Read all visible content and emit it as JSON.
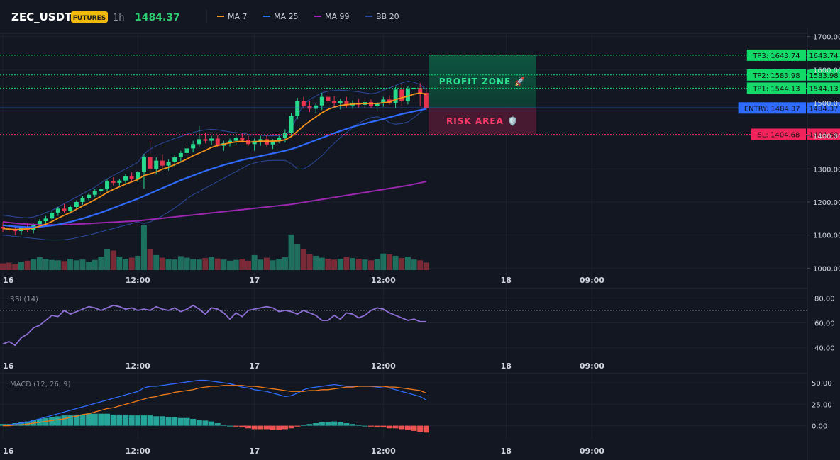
{
  "header": {
    "symbol": "ZEC_USDT",
    "badge": "FUTURES",
    "timeframe": "1h",
    "price": "1484.37",
    "legend": [
      {
        "name": "MA 7",
        "color": "#f7931a"
      },
      {
        "name": "MA 25",
        "color": "#2f6bff"
      },
      {
        "name": "MA 99",
        "color": "#9c27b0"
      },
      {
        "name": "BB 20",
        "color": "#2b4a9e"
      }
    ]
  },
  "colors": {
    "up": "#26d98b",
    "down": "#e8334f",
    "vol_up": "#1f6f5f",
    "vol_down": "#7a2a36",
    "entry": "#2f6bff",
    "tp": "#13d968",
    "sl": "#f0245a",
    "rsi": "#8e6fd6",
    "macd": "#2f6bff",
    "signal": "#f07a1a",
    "hist_up": "#26a69a",
    "hist_down": "#ef5350",
    "bb": "#2b4a9e"
  },
  "chart_data": {
    "type": "candlestick",
    "time_labels": [
      "16",
      "12:00",
      "17",
      "12:00",
      "18",
      "09:00"
    ],
    "time_label_index": [
      0,
      22,
      41,
      62,
      82,
      96
    ],
    "price_axis": {
      "ticks": [
        "1700.00",
        "1600.00",
        "1500.00",
        "1400.00",
        "1300.00",
        "1200.00",
        "1100.00",
        "1000.00"
      ],
      "ylim": [
        990,
        1710
      ]
    },
    "candles": [
      [
        1125,
        1138,
        1110,
        1120
      ],
      [
        1120,
        1132,
        1108,
        1118
      ],
      [
        1118,
        1130,
        1100,
        1112
      ],
      [
        1112,
        1125,
        1102,
        1122
      ],
      [
        1122,
        1135,
        1108,
        1115
      ],
      [
        1115,
        1135,
        1105,
        1130
      ],
      [
        1130,
        1148,
        1122,
        1142
      ],
      [
        1142,
        1158,
        1135,
        1150
      ],
      [
        1150,
        1172,
        1142,
        1168
      ],
      [
        1168,
        1185,
        1158,
        1180
      ],
      [
        1180,
        1195,
        1168,
        1172
      ],
      [
        1172,
        1190,
        1165,
        1185
      ],
      [
        1185,
        1205,
        1178,
        1200
      ],
      [
        1200,
        1218,
        1192,
        1212
      ],
      [
        1212,
        1228,
        1205,
        1222
      ],
      [
        1222,
        1240,
        1215,
        1232
      ],
      [
        1232,
        1250,
        1220,
        1240
      ],
      [
        1240,
        1268,
        1232,
        1262
      ],
      [
        1262,
        1275,
        1250,
        1258
      ],
      [
        1258,
        1270,
        1245,
        1265
      ],
      [
        1265,
        1285,
        1255,
        1278
      ],
      [
        1278,
        1290,
        1262,
        1270
      ],
      [
        1270,
        1295,
        1260,
        1290
      ],
      [
        1290,
        1345,
        1240,
        1335
      ],
      [
        1335,
        1385,
        1280,
        1300
      ],
      [
        1300,
        1335,
        1285,
        1325
      ],
      [
        1325,
        1345,
        1300,
        1310
      ],
      [
        1310,
        1328,
        1295,
        1322
      ],
      [
        1322,
        1342,
        1308,
        1335
      ],
      [
        1335,
        1355,
        1320,
        1348
      ],
      [
        1348,
        1372,
        1338,
        1362
      ],
      [
        1362,
        1385,
        1350,
        1375
      ],
      [
        1375,
        1430,
        1365,
        1390
      ],
      [
        1390,
        1410,
        1378,
        1385
      ],
      [
        1385,
        1400,
        1372,
        1392
      ],
      [
        1392,
        1402,
        1365,
        1370
      ],
      [
        1370,
        1385,
        1355,
        1378
      ],
      [
        1378,
        1392,
        1368,
        1385
      ],
      [
        1385,
        1402,
        1372,
        1395
      ],
      [
        1395,
        1410,
        1380,
        1388
      ],
      [
        1388,
        1400,
        1370,
        1375
      ],
      [
        1375,
        1392,
        1355,
        1385
      ],
      [
        1385,
        1400,
        1370,
        1390
      ],
      [
        1390,
        1402,
        1368,
        1374
      ],
      [
        1374,
        1390,
        1360,
        1386
      ],
      [
        1386,
        1400,
        1378,
        1395
      ],
      [
        1395,
        1420,
        1380,
        1408
      ],
      [
        1408,
        1468,
        1400,
        1460
      ],
      [
        1460,
        1515,
        1450,
        1505
      ],
      [
        1505,
        1518,
        1482,
        1490
      ],
      [
        1490,
        1505,
        1472,
        1482
      ],
      [
        1482,
        1498,
        1470,
        1492
      ],
      [
        1492,
        1530,
        1478,
        1518
      ],
      [
        1518,
        1535,
        1498,
        1505
      ],
      [
        1505,
        1520,
        1488,
        1498
      ],
      [
        1498,
        1512,
        1480,
        1505
      ],
      [
        1505,
        1518,
        1486,
        1492
      ],
      [
        1492,
        1508,
        1482,
        1500
      ],
      [
        1500,
        1512,
        1486,
        1494
      ],
      [
        1494,
        1508,
        1484,
        1502
      ],
      [
        1502,
        1510,
        1485,
        1490
      ],
      [
        1490,
        1502,
        1475,
        1498
      ],
      [
        1498,
        1518,
        1488,
        1510
      ],
      [
        1510,
        1522,
        1495,
        1500
      ],
      [
        1500,
        1548,
        1485,
        1540
      ],
      [
        1540,
        1555,
        1492,
        1505
      ],
      [
        1505,
        1550,
        1495,
        1542
      ],
      [
        1542,
        1552,
        1520,
        1545
      ],
      [
        1545,
        1560,
        1490,
        1530
      ],
      [
        1530,
        1540,
        1478,
        1484
      ]
    ],
    "volume": [
      18,
      20,
      17,
      22,
      25,
      30,
      34,
      30,
      27,
      26,
      24,
      30,
      26,
      28,
      22,
      27,
      36,
      55,
      52,
      36,
      30,
      33,
      38,
      120,
      55,
      40,
      33,
      30,
      28,
      37,
      33,
      29,
      28,
      32,
      35,
      31,
      28,
      25,
      27,
      30,
      25,
      40,
      28,
      33,
      26,
      30,
      34,
      95,
      70,
      55,
      42,
      38,
      33,
      30,
      28,
      30,
      35,
      32,
      30,
      28,
      26,
      30,
      44,
      42,
      38,
      32,
      36,
      28,
      26,
      20
    ],
    "ma7": [
      1120,
      1118,
      1117,
      1118,
      1119,
      1121,
      1127,
      1133,
      1141,
      1151,
      1160,
      1168,
      1178,
      1188,
      1197,
      1207,
      1217,
      1229,
      1238,
      1246,
      1254,
      1261,
      1268,
      1280,
      1285,
      1291,
      1299,
      1305,
      1313,
      1321,
      1330,
      1340,
      1348,
      1356,
      1365,
      1371,
      1375,
      1379,
      1382,
      1384,
      1381,
      1382,
      1384,
      1384,
      1384,
      1385,
      1388,
      1398,
      1414,
      1430,
      1444,
      1457,
      1470,
      1480,
      1487,
      1492,
      1494,
      1496,
      1497,
      1498,
      1498,
      1498,
      1500,
      1502,
      1510,
      1515,
      1520,
      1526,
      1530,
      1525
    ],
    "ma25": [
      1130,
      1128,
      1126,
      1125,
      1124,
      1124,
      1125,
      1127,
      1129,
      1132,
      1136,
      1140,
      1145,
      1150,
      1156,
      1162,
      1168,
      1175,
      1182,
      1189,
      1196,
      1203,
      1210,
      1218,
      1226,
      1234,
      1242,
      1250,
      1258,
      1266,
      1273,
      1280,
      1287,
      1294,
      1300,
      1306,
      1312,
      1317,
      1322,
      1327,
      1331,
      1335,
      1339,
      1343,
      1347,
      1351,
      1355,
      1360,
      1366,
      1373,
      1380,
      1387,
      1394,
      1401,
      1408,
      1415,
      1421,
      1427,
      1432,
      1437,
      1442,
      1446,
      1451,
      1456,
      1461,
      1466,
      1470,
      1474,
      1478,
      1482
    ],
    "ma99": [
      1140,
      1138,
      1136,
      1134,
      1133,
      1132,
      1131,
      1131,
      1131,
      1131,
      1132,
      1132,
      1133,
      1134,
      1135,
      1136,
      1137,
      1138,
      1139,
      1140,
      1141,
      1142,
      1143,
      1145,
      1147,
      1149,
      1151,
      1153,
      1155,
      1157,
      1159,
      1161,
      1163,
      1165,
      1167,
      1169,
      1171,
      1173,
      1175,
      1177,
      1179,
      1181,
      1183,
      1185,
      1187,
      1189,
      1191,
      1193,
      1196,
      1199,
      1202,
      1205,
      1208,
      1211,
      1214,
      1217,
      1220,
      1223,
      1226,
      1229,
      1232,
      1235,
      1238,
      1241,
      1244,
      1247,
      1250,
      1254,
      1258,
      1262
    ],
    "bb_upper": [
      1160,
      1158,
      1155,
      1153,
      1152,
      1155,
      1160,
      1168,
      1175,
      1185,
      1195,
      1205,
      1215,
      1225,
      1235,
      1245,
      1258,
      1270,
      1280,
      1290,
      1300,
      1310,
      1320,
      1345,
      1360,
      1370,
      1378,
      1385,
      1392,
      1398,
      1405,
      1410,
      1415,
      1418,
      1420,
      1418,
      1415,
      1412,
      1410,
      1408,
      1405,
      1403,
      1402,
      1400,
      1400,
      1401,
      1403,
      1420,
      1460,
      1495,
      1510,
      1520,
      1530,
      1535,
      1537,
      1538,
      1537,
      1535,
      1533,
      1530,
      1527,
      1530,
      1538,
      1545,
      1552,
      1560,
      1565,
      1562,
      1555,
      1540
    ],
    "bb_lower": [
      1100,
      1098,
      1096,
      1094,
      1092,
      1090,
      1088,
      1086,
      1085,
      1085,
      1086,
      1088,
      1092,
      1096,
      1100,
      1105,
      1110,
      1115,
      1120,
      1125,
      1130,
      1135,
      1140,
      1135,
      1140,
      1148,
      1158,
      1170,
      1182,
      1195,
      1210,
      1222,
      1232,
      1242,
      1252,
      1262,
      1272,
      1282,
      1292,
      1302,
      1312,
      1318,
      1322,
      1325,
      1326,
      1326,
      1326,
      1316,
      1300,
      1300,
      1310,
      1325,
      1340,
      1360,
      1378,
      1395,
      1410,
      1425,
      1438,
      1448,
      1455,
      1458,
      1452,
      1440,
      1435,
      1437,
      1442,
      1455,
      1470,
      1490
    ],
    "levels": [
      {
        "label": "TP3: 1643.74",
        "price_text": "1643.74",
        "value": 1643.74,
        "kind": "tp"
      },
      {
        "label": "TP2: 1583.98",
        "price_text": "1583.98",
        "value": 1583.98,
        "kind": "tp"
      },
      {
        "label": "TP1: 1544.13",
        "price_text": "1544.13",
        "value": 1544.13,
        "kind": "tp"
      },
      {
        "label": "ENTRY: 1484.37",
        "price_text": "1484.37",
        "value": 1484.37,
        "kind": "entry"
      },
      {
        "label": "SL: 1404.68",
        "price_text": "1404.68",
        "value": 1404.68,
        "kind": "sl"
      }
    ],
    "zones": {
      "profit": "PROFIT ZONE 🚀",
      "risk": "RISK AREA 🛡️"
    },
    "rsi": {
      "title": "RSI (14)",
      "ticks": [
        "80.00",
        "60.00",
        "40.00"
      ],
      "ylim": [
        33,
        87
      ],
      "reference": 70,
      "values": [
        43,
        45,
        42,
        48,
        51,
        56,
        58,
        62,
        66,
        65,
        70,
        67,
        69,
        71,
        73,
        72,
        70,
        72,
        74,
        73,
        71,
        72,
        70,
        71,
        70,
        73,
        71,
        70,
        72,
        69,
        71,
        74,
        71,
        67,
        72,
        71,
        68,
        63,
        68,
        65,
        70,
        71,
        72,
        73,
        72,
        69,
        70,
        69,
        67,
        70,
        68,
        66,
        62,
        62,
        66,
        63,
        68,
        67,
        64,
        66,
        70,
        72,
        71,
        68,
        66,
        64,
        62,
        63,
        61,
        61
      ]
    },
    "macd": {
      "title": "MACD (12, 26, 9)",
      "ticks": [
        "50.00",
        "25.00",
        "0.00"
      ],
      "ylim": [
        -16,
        60
      ],
      "macd": [
        0,
        1,
        2,
        3,
        4,
        6,
        8,
        10,
        12,
        14,
        16,
        18,
        20,
        22,
        24,
        26,
        28,
        30,
        32,
        34,
        36,
        38,
        40,
        44,
        46,
        46,
        47,
        48,
        49,
        50,
        51,
        52,
        53,
        53,
        52,
        51,
        50,
        49,
        47,
        45,
        44,
        42,
        41,
        40,
        38,
        36,
        34,
        35,
        38,
        42,
        44,
        45,
        46,
        47,
        48,
        47,
        46,
        46,
        46,
        46,
        46,
        45,
        44,
        44,
        42,
        40,
        38,
        36,
        34,
        30
      ],
      "signal": [
        0,
        0,
        1,
        1,
        2,
        3,
        4,
        5,
        6,
        7,
        8,
        10,
        11,
        13,
        14,
        16,
        18,
        20,
        21,
        23,
        25,
        27,
        29,
        31,
        33,
        34,
        36,
        37,
        39,
        40,
        41,
        42,
        44,
        45,
        46,
        46,
        47,
        47,
        47,
        47,
        46,
        46,
        45,
        44,
        43,
        42,
        41,
        40,
        40,
        40,
        41,
        41,
        42,
        42,
        43,
        44,
        45,
        45,
        46,
        46,
        46,
        46,
        46,
        45,
        45,
        44,
        43,
        42,
        41,
        38
      ],
      "hist": [
        2,
        2,
        3,
        4,
        5,
        7,
        8,
        9,
        10,
        11,
        12,
        12,
        13,
        13,
        14,
        14,
        14,
        14,
        13,
        13,
        13,
        12,
        12,
        12,
        12,
        11,
        11,
        10,
        10,
        9,
        9,
        8,
        7,
        6,
        5,
        3,
        1,
        0,
        -1,
        -2,
        -3,
        -4,
        -4,
        -4,
        -5,
        -5,
        -4,
        -3,
        -1,
        1,
        2,
        3,
        4,
        4,
        5,
        4,
        3,
        2,
        1,
        0,
        -1,
        -2,
        -2,
        -3,
        -3,
        -4,
        -5,
        -6,
        -7,
        -8
      ]
    }
  }
}
